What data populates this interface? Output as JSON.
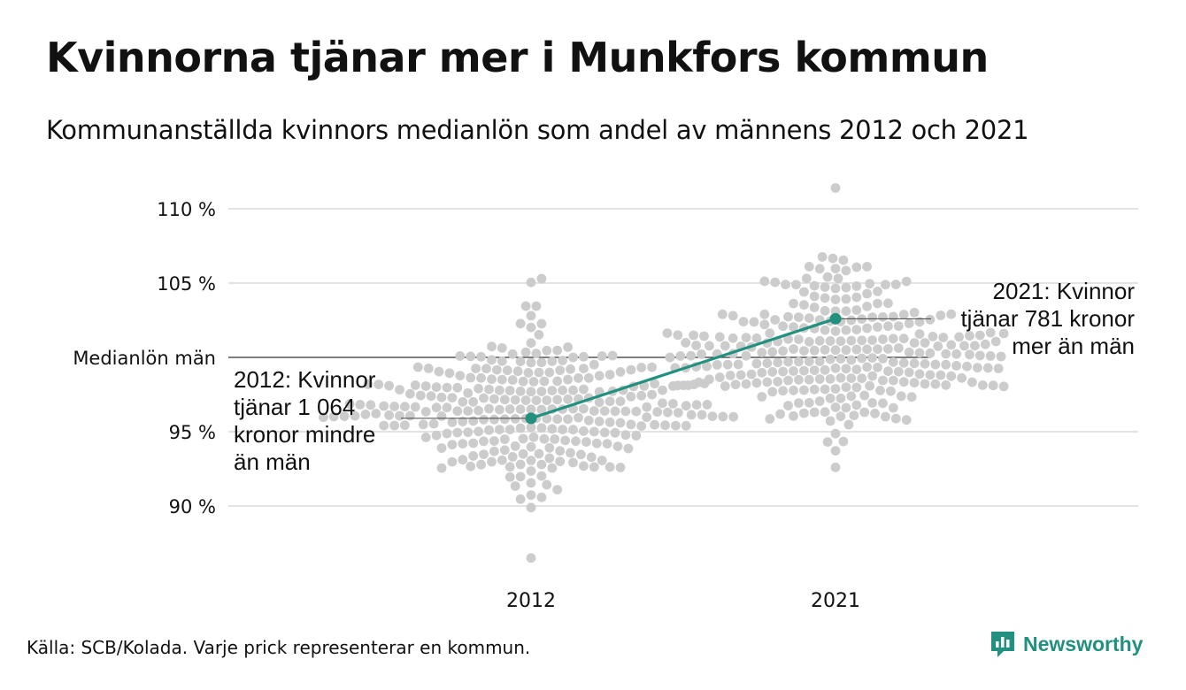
{
  "header": {
    "title": "Kvinnorna tjänar mer i Munkfors kommun",
    "subtitle": "Kommunanställda kvinnors medianlön som andel av männens 2012 och 2021"
  },
  "footer": {
    "source": "Källa: SCB/Kolada. Varje prick representerar en kommun.",
    "brand": "Newsworthy"
  },
  "colors": {
    "dots": "#cccccc",
    "highlight": "#21907f",
    "grid": "#e3e3e3",
    "reference": "#333333"
  },
  "chart_data": {
    "type": "scatter",
    "title": "Kvinnorna tjänar mer i Munkfors kommun",
    "subtitle": "Kommunanställda kvinnors medianlön som andel av männens 2012 och 2021",
    "categories": [
      "2012",
      "2021"
    ],
    "y_unit": "%",
    "ylim": [
      86,
      112
    ],
    "y_ticks": [
      {
        "value": 110,
        "label": "110 %"
      },
      {
        "value": 105,
        "label": "105 %"
      },
      {
        "value": 95,
        "label": "95 %"
      },
      {
        "value": 90,
        "label": "90 %"
      }
    ],
    "reference_line": {
      "value": 100,
      "label": "Medianlön män"
    },
    "grid": true,
    "distribution": [
      {
        "category": "2012",
        "min": 86.5,
        "max": 105.3,
        "center": 96.5,
        "count": 290
      },
      {
        "category": "2021",
        "min": 92.6,
        "max": 111.4,
        "center": 100.5,
        "count": 290
      }
    ],
    "series": [
      {
        "name": "Munkfors",
        "points": [
          {
            "x": "2012",
            "y": 95.9
          },
          {
            "x": "2021",
            "y": 102.6
          }
        ]
      }
    ],
    "annotations": [
      {
        "category": "2012",
        "lines": [
          "2012: Kvinnor",
          "tjänar 1 064",
          "kronor mindre",
          "än män"
        ]
      },
      {
        "category": "2021",
        "lines": [
          "2021: Kvinnor",
          "tjänar 781 kronor",
          "mer än män"
        ]
      }
    ]
  }
}
